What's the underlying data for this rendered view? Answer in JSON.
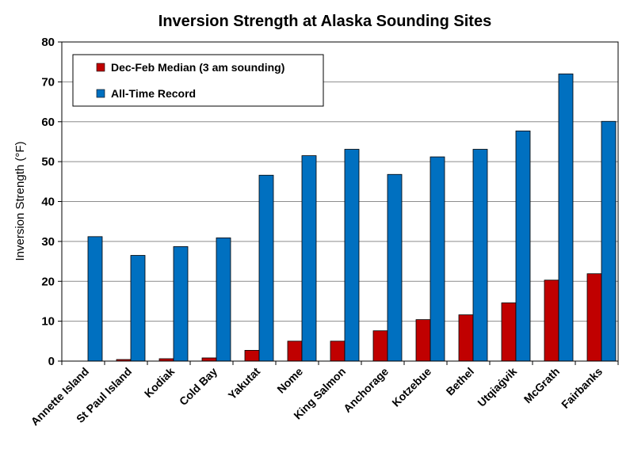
{
  "chart_data": {
    "type": "bar",
    "title": "Inversion Strength at Alaska Sounding Sites",
    "ylabel": "Inversion Strength (°F)",
    "xlabel": "",
    "ylim": [
      0,
      80
    ],
    "yticks": [
      0,
      10,
      20,
      30,
      40,
      50,
      60,
      70,
      80
    ],
    "grid": true,
    "legend_position": "top-left",
    "categories": [
      "Annette Island",
      "St Paul Island",
      "Kodiak",
      "Cold Bay",
      "Yakutat",
      "Nome",
      "King Salmon",
      "Anchorage",
      "Kotzebue",
      "Bethel",
      "Utqiaġvik",
      "McGrath",
      "Fairbanks"
    ],
    "series": [
      {
        "name": "Dec-Feb Median (3 am sounding)",
        "color": "#c00000",
        "values": [
          0,
          0.4,
          0.6,
          0.8,
          2.7,
          5.0,
          5.0,
          7.6,
          10.4,
          11.6,
          14.6,
          20.3,
          21.9
        ]
      },
      {
        "name": "All-Time Record",
        "color": "#0070c0",
        "values": [
          31.2,
          26.5,
          28.7,
          30.9,
          46.6,
          51.5,
          53.1,
          46.8,
          51.2,
          53.1,
          57.7,
          72.0,
          60.1
        ]
      }
    ]
  }
}
